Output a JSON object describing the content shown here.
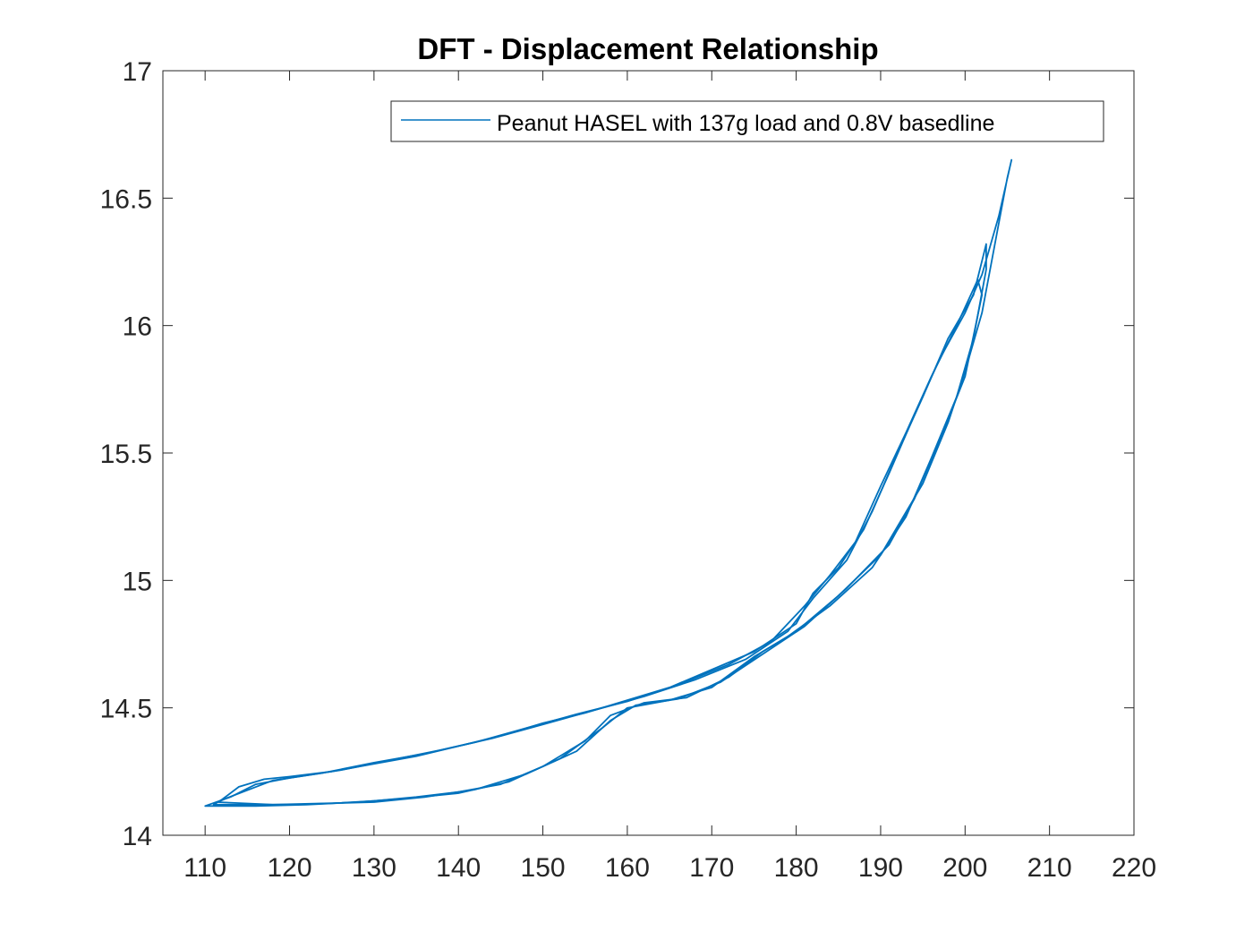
{
  "chart_data": {
    "type": "line",
    "title": "DFT - Displacement Relationship",
    "xlabel": "",
    "ylabel": "",
    "xlim": [
      105,
      220
    ],
    "ylim": [
      14,
      17
    ],
    "xticks": [
      110,
      120,
      130,
      140,
      150,
      160,
      170,
      180,
      190,
      200,
      210,
      220
    ],
    "yticks": [
      14,
      14.5,
      15,
      15.5,
      16,
      16.5,
      17
    ],
    "grid": false,
    "legend_position": "top-right",
    "series_color": "#0072BD",
    "series": [
      {
        "name": "Peanut HASEL with 137g load and 0.8V basedline",
        "loops": [
          {
            "upper": [
              [
                112,
                14.14
              ],
              [
                114,
                14.19
              ],
              [
                117,
                14.22
              ],
              [
                120,
                14.23
              ],
              [
                125,
                14.25
              ],
              [
                130,
                14.28
              ],
              [
                135,
                14.31
              ],
              [
                140,
                14.35
              ],
              [
                145,
                14.39
              ],
              [
                150,
                14.44
              ],
              [
                155,
                14.48
              ],
              [
                160,
                14.53
              ],
              [
                165,
                14.58
              ],
              [
                170,
                14.65
              ],
              [
                175,
                14.72
              ],
              [
                180,
                14.83
              ],
              [
                182,
                14.95
              ],
              [
                185,
                15.05
              ],
              [
                188,
                15.2
              ],
              [
                191,
                15.42
              ],
              [
                194,
                15.65
              ],
              [
                197,
                15.87
              ],
              [
                200,
                16.05
              ],
              [
                202,
                16.2
              ],
              [
                204,
                16.43
              ],
              [
                205.5,
                16.65
              ]
            ],
            "lower": [
              [
                111,
                14.12
              ],
              [
                115,
                14.12
              ],
              [
                120,
                14.12
              ],
              [
                125,
                14.125
              ],
              [
                130,
                14.135
              ],
              [
                135,
                14.15
              ],
              [
                140,
                14.17
              ],
              [
                145,
                14.2
              ],
              [
                150,
                14.27
              ],
              [
                155,
                14.37
              ],
              [
                158,
                14.47
              ],
              [
                162,
                14.52
              ],
              [
                167,
                14.54
              ],
              [
                172,
                14.62
              ],
              [
                176,
                14.72
              ],
              [
                180,
                14.8
              ],
              [
                185,
                14.94
              ],
              [
                190,
                15.1
              ],
              [
                195,
                15.38
              ],
              [
                198,
                15.62
              ],
              [
                200,
                15.82
              ],
              [
                202,
                16.05
              ],
              [
                205,
                16.58
              ]
            ]
          },
          {
            "upper": [
              [
                113,
                14.15
              ],
              [
                116,
                14.2
              ],
              [
                120,
                14.225
              ],
              [
                126,
                14.255
              ],
              [
                132,
                14.295
              ],
              [
                138,
                14.335
              ],
              [
                144,
                14.38
              ],
              [
                150,
                14.435
              ],
              [
                156,
                14.49
              ],
              [
                162,
                14.545
              ],
              [
                168,
                14.61
              ],
              [
                174,
                14.69
              ],
              [
                179,
                14.8
              ],
              [
                182,
                14.93
              ],
              [
                186,
                15.08
              ],
              [
                189,
                15.27
              ],
              [
                192,
                15.5
              ],
              [
                195,
                15.72
              ],
              [
                198,
                15.95
              ],
              [
                201,
                16.12
              ],
              [
                202.5,
                16.32
              ]
            ],
            "lower": [
              [
                110,
                14.115
              ],
              [
                116,
                14.115
              ],
              [
                122,
                14.12
              ],
              [
                128,
                14.13
              ],
              [
                134,
                14.145
              ],
              [
                140,
                14.165
              ],
              [
                146,
                14.21
              ],
              [
                152,
                14.3
              ],
              [
                157,
                14.42
              ],
              [
                160,
                14.5
              ],
              [
                165,
                14.53
              ],
              [
                170,
                14.58
              ],
              [
                175,
                14.7
              ],
              [
                179,
                14.78
              ],
              [
                184,
                14.9
              ],
              [
                189,
                15.05
              ],
              [
                193,
                15.25
              ],
              [
                196,
                15.48
              ],
              [
                199,
                15.72
              ],
              [
                201,
                15.95
              ],
              [
                202.5,
                16.22
              ]
            ]
          },
          {
            "upper": [
              [
                112.5,
                14.145
              ],
              [
                118,
                14.215
              ],
              [
                124,
                14.245
              ],
              [
                130,
                14.285
              ],
              [
                136,
                14.32
              ],
              [
                142,
                14.365
              ],
              [
                148,
                14.42
              ],
              [
                154,
                14.475
              ],
              [
                160,
                14.525
              ],
              [
                166,
                14.59
              ],
              [
                172,
                14.67
              ],
              [
                177,
                14.76
              ],
              [
                181,
                14.9
              ],
              [
                184,
                15.02
              ],
              [
                187,
                15.15
              ],
              [
                190,
                15.37
              ],
              [
                193,
                15.58
              ],
              [
                196,
                15.8
              ],
              [
                199,
                16.0
              ],
              [
                201.5,
                16.18
              ]
            ],
            "lower": [
              [
                111.5,
                14.13
              ],
              [
                118,
                14.12
              ],
              [
                124,
                14.125
              ],
              [
                130,
                14.13
              ],
              [
                136,
                14.15
              ],
              [
                142,
                14.18
              ],
              [
                148,
                14.24
              ],
              [
                154,
                14.33
              ],
              [
                158,
                14.45
              ],
              [
                161,
                14.51
              ],
              [
                166,
                14.535
              ],
              [
                171,
                14.6
              ],
              [
                176,
                14.71
              ],
              [
                181,
                14.82
              ],
              [
                186,
                14.97
              ],
              [
                191,
                15.14
              ],
              [
                194,
                15.32
              ],
              [
                197,
                15.55
              ],
              [
                200,
                15.8
              ],
              [
                202,
                16.12
              ]
            ]
          }
        ]
      }
    ]
  }
}
